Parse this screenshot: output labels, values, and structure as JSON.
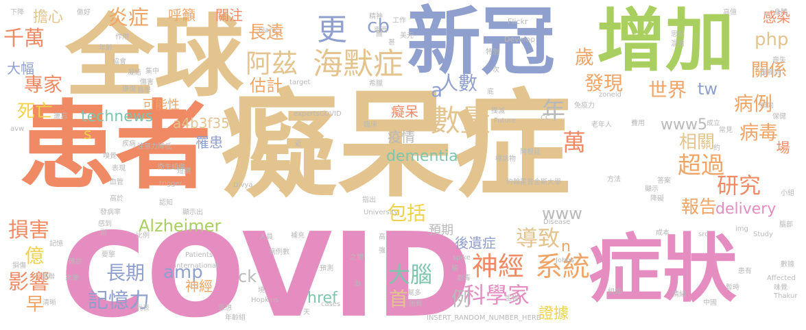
{
  "palette": {
    "tan": "#e3c48f",
    "purple": "#8f9fce",
    "green": "#a9cf61",
    "salmon": "#f08a64",
    "pink": "#e58cc0",
    "orange": "#f0a466",
    "teal": "#7fc5ad",
    "yellow": "#f0d24a",
    "gray": "#b9b9b9",
    "rose": "#ec9fa0"
  },
  "words": [
    {
      "text": "癡呆症",
      "color": "tan"
    },
    {
      "text": "COVID",
      "color": "pink"
    },
    {
      "text": "患者",
      "color": "salmon"
    },
    {
      "text": "全球",
      "color": "tan"
    },
    {
      "text": "新冠",
      "color": "purple"
    },
    {
      "text": "增加",
      "color": "green"
    },
    {
      "text": "症狀",
      "color": "pink"
    },
    {
      "text": "海默症",
      "color": "tan"
    },
    {
      "text": "阿茲",
      "color": "tan"
    },
    {
      "text": "更",
      "color": "purple"
    },
    {
      "text": "cb",
      "color": "purple"
    },
    {
      "text": "炎症",
      "color": "orange"
    },
    {
      "text": "長遠",
      "color": "orange"
    },
    {
      "text": "數量",
      "color": "tan"
    },
    {
      "text": "technews",
      "color": "teal"
    },
    {
      "text": "Alzheimer",
      "color": "green"
    },
    {
      "text": "dementia",
      "color": "teal"
    },
    {
      "text": "delivery",
      "color": "pink"
    },
    {
      "text": "科學家",
      "color": "pink"
    },
    {
      "text": "系統",
      "color": "orange"
    },
    {
      "text": "神經",
      "color": "salmon"
    },
    {
      "text": "大腦",
      "color": "teal"
    },
    {
      "text": "導致",
      "color": "tan"
    },
    {
      "text": "包括",
      "color": "yellow"
    },
    {
      "text": "人數",
      "color": "purple"
    },
    {
      "text": "估計",
      "color": "orange"
    },
    {
      "text": "發現",
      "color": "orange"
    },
    {
      "text": "世界",
      "color": "orange"
    },
    {
      "text": "關係",
      "color": "orange"
    },
    {
      "text": "病例",
      "color": "orange"
    },
    {
      "text": "病毒",
      "color": "orange"
    },
    {
      "text": "研究",
      "color": "salmon"
    },
    {
      "text": "超過",
      "color": "orange"
    },
    {
      "text": "報告",
      "color": "orange"
    },
    {
      "text": "相關",
      "color": "tan"
    },
    {
      "text": "萬",
      "color": "salmon"
    },
    {
      "text": "年",
      "color": "gray"
    },
    {
      "text": "歲",
      "color": "orange"
    },
    {
      "text": "www5",
      "color": "gray"
    },
    {
      "text": "www",
      "color": "gray"
    },
    {
      "text": "php",
      "color": "tan"
    },
    {
      "text": "amp",
      "color": "purple"
    },
    {
      "text": "記憶力",
      "color": "purple"
    },
    {
      "text": "長期",
      "color": "purple"
    },
    {
      "text": "損害",
      "color": "salmon"
    },
    {
      "text": "影響",
      "color": "salmon"
    },
    {
      "text": "億",
      "color": "yellow"
    },
    {
      "text": "早",
      "color": "orange"
    },
    {
      "text": "千萬",
      "color": "salmon"
    },
    {
      "text": "大幅",
      "color": "purple"
    },
    {
      "text": "專家",
      "color": "salmon"
    },
    {
      "text": "死亡",
      "color": "yellow"
    },
    {
      "text": "擔心",
      "color": "tan"
    },
    {
      "text": "呼籲",
      "color": "orange"
    },
    {
      "text": "關注",
      "color": "salmon"
    },
    {
      "text": "感染",
      "color": "salmon"
    },
    {
      "text": "可能性",
      "color": "orange"
    },
    {
      "text": "a4b3f35b",
      "color": "tan"
    },
    {
      "text": "罹患",
      "color": "purple"
    },
    {
      "text": "疫情",
      "color": "gray"
    },
    {
      "text": "首",
      "color": "tan"
    },
    {
      "text": "例",
      "color": "gray"
    },
    {
      "text": "後遺症",
      "color": "purple"
    },
    {
      "text": "預期",
      "color": "gray"
    },
    {
      "text": "證據",
      "color": "yellow"
    },
    {
      "text": "href",
      "color": "teal"
    },
    {
      "text": "ck",
      "color": "gray"
    },
    {
      "text": "神經",
      "color": "orange"
    },
    {
      "text": "tw",
      "color": "purple"
    },
    {
      "text": "a",
      "color": "purple"
    },
    {
      "text": "s",
      "color": "yellow"
    },
    {
      "text": "n",
      "color": "orange"
    },
    {
      "text": "場",
      "color": "salmon"
    },
    {
      "text": "癡呆",
      "color": "salmon"
    },
    {
      "text": "下降",
      "color": "gray"
    },
    {
      "text": "做好",
      "color": "gray"
    },
    {
      "text": "_blank",
      "color": "gray"
    },
    {
      "text": "精神",
      "color": "gray"
    },
    {
      "text": "美元",
      "color": "gray"
    },
    {
      "text": "Flickr",
      "color": "gray"
    },
    {
      "text": "Develop",
      "color": "gray"
    },
    {
      "text": "思維",
      "color": "gray"
    },
    {
      "text": "混淆",
      "color": "gray"
    },
    {
      "text": "年齡",
      "color": "gray"
    },
    {
      "text": "作用",
      "color": "gray"
    },
    {
      "text": "協會",
      "color": "gray"
    },
    {
      "text": "集中",
      "color": "gray"
    },
    {
      "text": "凝結",
      "color": "gray"
    },
    {
      "text": "傷害",
      "color": "gray"
    },
    {
      "text": "康復",
      "color": "gray"
    },
    {
      "text": "醫學",
      "color": "gray"
    },
    {
      "text": "target",
      "color": "gray"
    },
    {
      "text": "希臘",
      "color": "gray"
    },
    {
      "text": "次",
      "color": "gray"
    },
    {
      "text": "特別",
      "color": "gray"
    },
    {
      "text": "底",
      "color": "gray"
    },
    {
      "text": "撲滅",
      "color": "gray"
    },
    {
      "text": "zoneid",
      "color": "gray"
    },
    {
      "text": "免疫力",
      "color": "gray"
    },
    {
      "text": "CC",
      "color": "gray"
    },
    {
      "text": "Future",
      "color": "gray"
    },
    {
      "text": "expertsCOVID",
      "color": "gray"
    },
    {
      "text": "臨床",
      "color": "gray"
    },
    {
      "text": "老年人",
      "color": "gray"
    },
    {
      "text": "費用",
      "color": "gray"
    },
    {
      "text": "成立",
      "color": "gray"
    },
    {
      "text": "常見",
      "color": "gray"
    },
    {
      "text": "avw",
      "color": "gray"
    },
    {
      "text": "疾病",
      "color": "gray"
    },
    {
      "text": "注意力",
      "color": "gray"
    },
    {
      "text": "降低",
      "color": "gray"
    },
    {
      "text": "衛生組織",
      "color": "gray"
    },
    {
      "text": "嗅覺",
      "color": "gray"
    },
    {
      "text": "表現",
      "color": "gray"
    },
    {
      "text": "短期",
      "color": "gray"
    },
    {
      "text": "血管",
      "color": "gray"
    },
    {
      "text": "trigger",
      "color": "gray"
    },
    {
      "text": "Divya",
      "color": "gray"
    },
    {
      "text": "標誌物",
      "color": "gray"
    },
    {
      "text": "阿根廷",
      "color": "gray"
    },
    {
      "text": "約翰霍普金斯大學",
      "color": "gray"
    },
    {
      "text": "方法",
      "color": "gray"
    },
    {
      "text": "答案",
      "color": "gray"
    },
    {
      "text": "顯示",
      "color": "gray"
    },
    {
      "text": "降礙",
      "color": "gray"
    },
    {
      "text": "小組",
      "color": "gray"
    },
    {
      "text": "高於",
      "color": "gray"
    },
    {
      "text": "認知",
      "color": "gray"
    },
    {
      "text": "發病率",
      "color": "gray"
    },
    {
      "text": "顯示出",
      "color": "gray"
    },
    {
      "text": "指出",
      "color": "gray"
    },
    {
      "text": "University",
      "color": "gray"
    },
    {
      "text": "Disease",
      "color": "gray"
    },
    {
      "text": "感到",
      "color": "gray"
    },
    {
      "text": "比例",
      "color": "gray"
    },
    {
      "text": "記憶",
      "color": "gray"
    },
    {
      "text": "人員",
      "color": "gray"
    },
    {
      "text": "補充",
      "color": "gray"
    },
    {
      "text": "高",
      "color": "gray"
    },
    {
      "text": "Patients",
      "color": "gray"
    },
    {
      "text": "International",
      "color": "gray"
    },
    {
      "text": "病例數",
      "color": "gray"
    },
    {
      "text": "確診",
      "color": "gray"
    },
    {
      "text": "損傷",
      "color": "gray"
    },
    {
      "text": "困難",
      "color": "gray"
    },
    {
      "text": "來源",
      "color": "gray"
    },
    {
      "text": "預測",
      "color": "gray"
    },
    {
      "text": "之間",
      "color": "gray"
    },
    {
      "text": "強",
      "color": "gray"
    },
    {
      "text": "spike",
      "color": "gray"
    },
    {
      "text": "Johns",
      "color": "gray"
    },
    {
      "text": "成本",
      "color": "gray"
    },
    {
      "text": "src",
      "color": "gray"
    },
    {
      "text": "Study",
      "color": "gray"
    },
    {
      "text": "img",
      "color": "gray"
    },
    {
      "text": "腦部",
      "color": "gray"
    },
    {
      "text": "Affected",
      "color": "gray"
    },
    {
      "text": "患有",
      "color": "gray"
    },
    {
      "text": "數據",
      "color": "gray"
    },
    {
      "text": "味覺",
      "color": "gray"
    },
    {
      "text": "暫時",
      "color": "gray"
    },
    {
      "text": "Thakur",
      "color": "gray"
    },
    {
      "text": "Hopkins",
      "color": "gray"
    },
    {
      "text": "cases",
      "color": "gray"
    },
    {
      "text": "生物",
      "color": "gray"
    },
    {
      "text": "組織",
      "color": "gray"
    },
    {
      "text": "情緒",
      "color": "gray"
    },
    {
      "text": "中國",
      "color": "gray"
    },
    {
      "text": "清晰",
      "color": "gray"
    },
    {
      "text": "代表",
      "color": "gray"
    },
    {
      "text": "思想",
      "color": "gray"
    },
    {
      "text": "年齡組",
      "color": "gray"
    },
    {
      "text": "天",
      "color": "gray"
    },
    {
      "text": "INSERT_RANDOM_NUMBER_HERE",
      "color": "gray"
    },
    {
      "text": "高億",
      "color": "gray"
    },
    {
      "text": "身體",
      "color": "gray"
    },
    {
      "text": "喪失",
      "color": "gray"
    },
    {
      "text": "接觸到",
      "color": "gray"
    },
    {
      "text": "傾向",
      "color": "gray"
    },
    {
      "text": "保健",
      "color": "gray"
    },
    {
      "text": "約",
      "color": "gray"
    },
    {
      "text": "近",
      "color": "gray"
    },
    {
      "text": "遭忘",
      "color": "gray"
    },
    {
      "text": "關聯",
      "color": "gray"
    },
    {
      "text": "要擎",
      "color": "gray"
    },
    {
      "text": "副",
      "color": "gray"
    },
    {
      "text": "治",
      "color": "gray"
    },
    {
      "text": "境",
      "color": "gray"
    },
    {
      "text": "甚",
      "color": "gray"
    },
    {
      "text": "東西",
      "color": "gray"
    },
    {
      "text": "工作",
      "color": "gray"
    },
    {
      "text": "劇毒",
      "color": "gray"
    },
    {
      "text": "稿",
      "color": "gray"
    },
    {
      "text": "幫多",
      "color": "gray"
    },
    {
      "text": "團",
      "color": "gray"
    },
    {
      "text": "肝炎",
      "color": "gray"
    }
  ]
}
